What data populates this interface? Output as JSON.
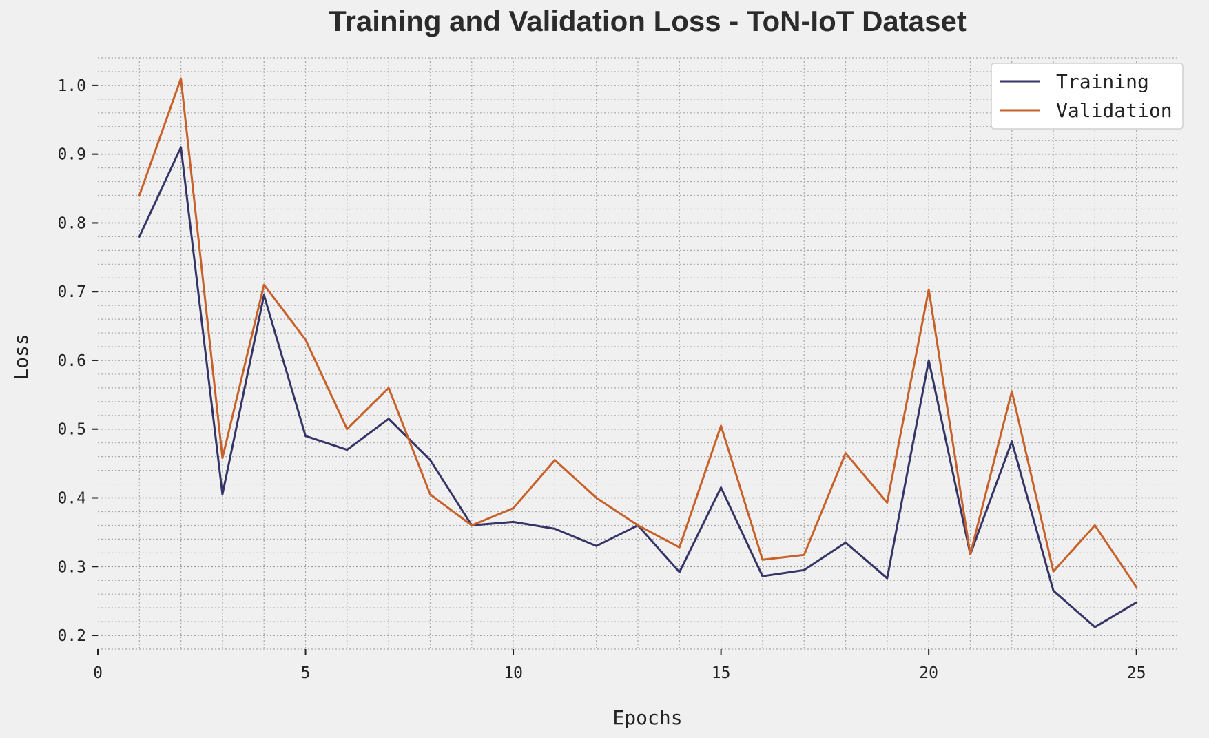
{
  "chart_data": {
    "type": "line",
    "title": "Training and Validation Loss - ToN-IoT Dataset",
    "xlabel": "Epochs",
    "ylabel": "Loss",
    "xlim": [
      0,
      26
    ],
    "ylim": [
      0.18,
      1.04
    ],
    "xticks": [
      0,
      5,
      10,
      15,
      20,
      25
    ],
    "xtick_labels": [
      "0",
      "5",
      "10",
      "15",
      "20",
      "25"
    ],
    "yticks": [
      0.2,
      0.3,
      0.4,
      0.5,
      0.6,
      0.7,
      0.8,
      0.9,
      1.0
    ],
    "ytick_labels": [
      "0.2",
      "0.3",
      "0.4",
      "0.5",
      "0.6",
      "0.7",
      "0.8",
      "0.9",
      "1.0"
    ],
    "grid": true,
    "legend_position": "top-right",
    "x": [
      1,
      2,
      3,
      4,
      5,
      6,
      7,
      8,
      9,
      10,
      11,
      12,
      13,
      14,
      15,
      16,
      17,
      18,
      19,
      20,
      21,
      22,
      23,
      24,
      25
    ],
    "series": [
      {
        "name": "Training",
        "color": "#343466",
        "values": [
          0.78,
          0.91,
          0.405,
          0.695,
          0.49,
          0.47,
          0.515,
          0.455,
          0.36,
          0.365,
          0.355,
          0.33,
          0.36,
          0.292,
          0.415,
          0.286,
          0.295,
          0.335,
          0.283,
          0.6,
          0.318,
          0.482,
          0.265,
          0.212,
          0.248
        ]
      },
      {
        "name": "Validation",
        "color": "#c8602a",
        "values": [
          0.84,
          1.01,
          0.458,
          0.71,
          0.63,
          0.5,
          0.56,
          0.405,
          0.36,
          0.385,
          0.455,
          0.4,
          0.36,
          0.328,
          0.505,
          0.31,
          0.317,
          0.465,
          0.393,
          0.703,
          0.318,
          0.555,
          0.293,
          0.36,
          0.27
        ]
      }
    ]
  }
}
